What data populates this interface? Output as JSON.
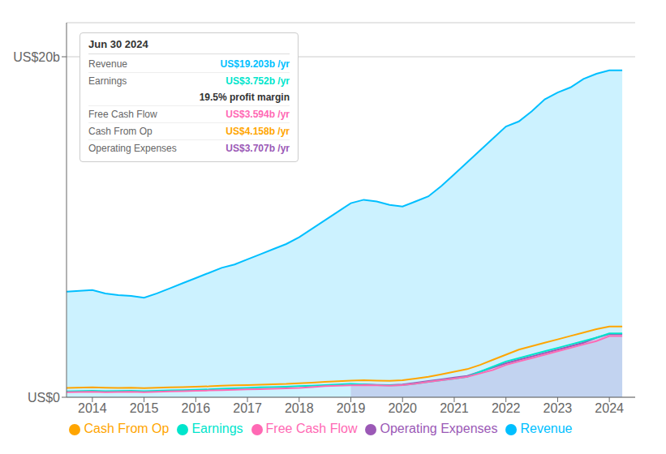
{
  "chart_data": {
    "type": "line",
    "x": [
      2013.5,
      2014,
      2014.25,
      2014.5,
      2014.75,
      2015,
      2015.25,
      2015.5,
      2015.75,
      2016,
      2016.25,
      2016.5,
      2016.75,
      2017,
      2017.25,
      2017.5,
      2017.75,
      2018,
      2018.25,
      2018.5,
      2018.75,
      2019,
      2019.25,
      2019.5,
      2019.75,
      2020,
      2020.25,
      2020.5,
      2020.75,
      2021,
      2021.25,
      2021.5,
      2021.75,
      2022,
      2022.25,
      2022.5,
      2022.75,
      2023,
      2023.25,
      2023.5,
      2023.75,
      2024,
      2024.25
    ],
    "series": [
      {
        "name": "Revenue",
        "color": "#00bfff",
        "type": "area",
        "values": [
          6.2,
          6.3,
          6.1,
          6.0,
          5.95,
          5.85,
          6.1,
          6.4,
          6.7,
          7.0,
          7.3,
          7.6,
          7.8,
          8.1,
          8.4,
          8.7,
          9.0,
          9.4,
          9.9,
          10.4,
          10.9,
          11.4,
          11.6,
          11.5,
          11.3,
          11.2,
          11.5,
          11.8,
          12.4,
          13.1,
          13.8,
          14.5,
          15.2,
          15.9,
          16.2,
          16.8,
          17.5,
          17.9,
          18.2,
          18.7,
          19.0,
          19.203,
          19.203
        ]
      },
      {
        "name": "Earnings",
        "color": "#00e5cc",
        "type": "line",
        "values": [
          0.35,
          0.38,
          0.36,
          0.37,
          0.38,
          0.36,
          0.38,
          0.4,
          0.42,
          0.44,
          0.46,
          0.5,
          0.52,
          0.55,
          0.58,
          0.6,
          0.62,
          0.65,
          0.68,
          0.72,
          0.75,
          0.78,
          0.75,
          0.72,
          0.7,
          0.72,
          0.8,
          0.9,
          1.0,
          1.1,
          1.2,
          1.5,
          1.8,
          2.1,
          2.3,
          2.5,
          2.7,
          2.9,
          3.1,
          3.3,
          3.5,
          3.752,
          3.752
        ]
      },
      {
        "name": "Free Cash Flow",
        "color": "#ff69b4",
        "type": "line",
        "values": [
          0.3,
          0.32,
          0.3,
          0.31,
          0.32,
          0.3,
          0.32,
          0.34,
          0.36,
          0.38,
          0.4,
          0.42,
          0.44,
          0.46,
          0.48,
          0.5,
          0.52,
          0.55,
          0.6,
          0.65,
          0.68,
          0.7,
          0.72,
          0.7,
          0.68,
          0.72,
          0.8,
          0.9,
          1.0,
          1.1,
          1.2,
          1.4,
          1.6,
          1.9,
          2.1,
          2.3,
          2.5,
          2.7,
          2.9,
          3.1,
          3.3,
          3.594,
          3.594
        ]
      },
      {
        "name": "Cash From Op",
        "color": "#ffa500",
        "type": "line",
        "values": [
          0.55,
          0.58,
          0.56,
          0.55,
          0.56,
          0.54,
          0.56,
          0.58,
          0.6,
          0.62,
          0.64,
          0.68,
          0.7,
          0.72,
          0.74,
          0.76,
          0.78,
          0.82,
          0.86,
          0.9,
          0.94,
          0.98,
          1.0,
          0.98,
          0.96,
          1.0,
          1.1,
          1.2,
          1.35,
          1.5,
          1.65,
          1.9,
          2.2,
          2.5,
          2.8,
          3.0,
          3.2,
          3.4,
          3.6,
          3.8,
          4.0,
          4.158,
          4.158
        ]
      },
      {
        "name": "Operating Expenses",
        "color": "#9b59b6",
        "type": "area",
        "values": [
          null,
          null,
          null,
          null,
          null,
          null,
          null,
          null,
          null,
          null,
          null,
          null,
          null,
          null,
          null,
          null,
          null,
          null,
          null,
          null,
          null,
          0.72,
          0.75,
          0.73,
          0.71,
          0.75,
          0.85,
          0.95,
          1.05,
          1.15,
          1.25,
          1.5,
          1.75,
          2.0,
          2.2,
          2.4,
          2.6,
          2.8,
          3.0,
          3.2,
          3.5,
          3.707,
          3.707
        ]
      }
    ],
    "xlim": [
      2013.5,
      2024.5
    ],
    "xticks": [
      2014,
      2015,
      2016,
      2017,
      2018,
      2019,
      2020,
      2021,
      2022,
      2023,
      2024
    ],
    "ylim": [
      0,
      22
    ],
    "yticks": [
      {
        "value": 0,
        "label": "US$0"
      },
      {
        "value": 20,
        "label": "US$20b"
      }
    ],
    "grid": true,
    "legend": "bottom",
    "annotations": [
      {
        "title": "Jun 30 2024",
        "rows": [
          {
            "label": "Revenue",
            "text": "US$19.203b /yr",
            "color": "#00bfff"
          },
          {
            "label": "Earnings",
            "text": "US$3.752b /yr",
            "color": "#00e5cc"
          },
          {
            "text": "19.5% profit margin"
          },
          {
            "label": "Free Cash Flow",
            "text": "US$3.594b /yr",
            "color": "#ff69b4"
          },
          {
            "label": "Cash From Op",
            "text": "US$4.158b /yr",
            "color": "#ffa500"
          },
          {
            "label": "Operating Expenses",
            "text": "US$3.707b /yr",
            "color": "#9b59b6"
          }
        ]
      }
    ]
  }
}
